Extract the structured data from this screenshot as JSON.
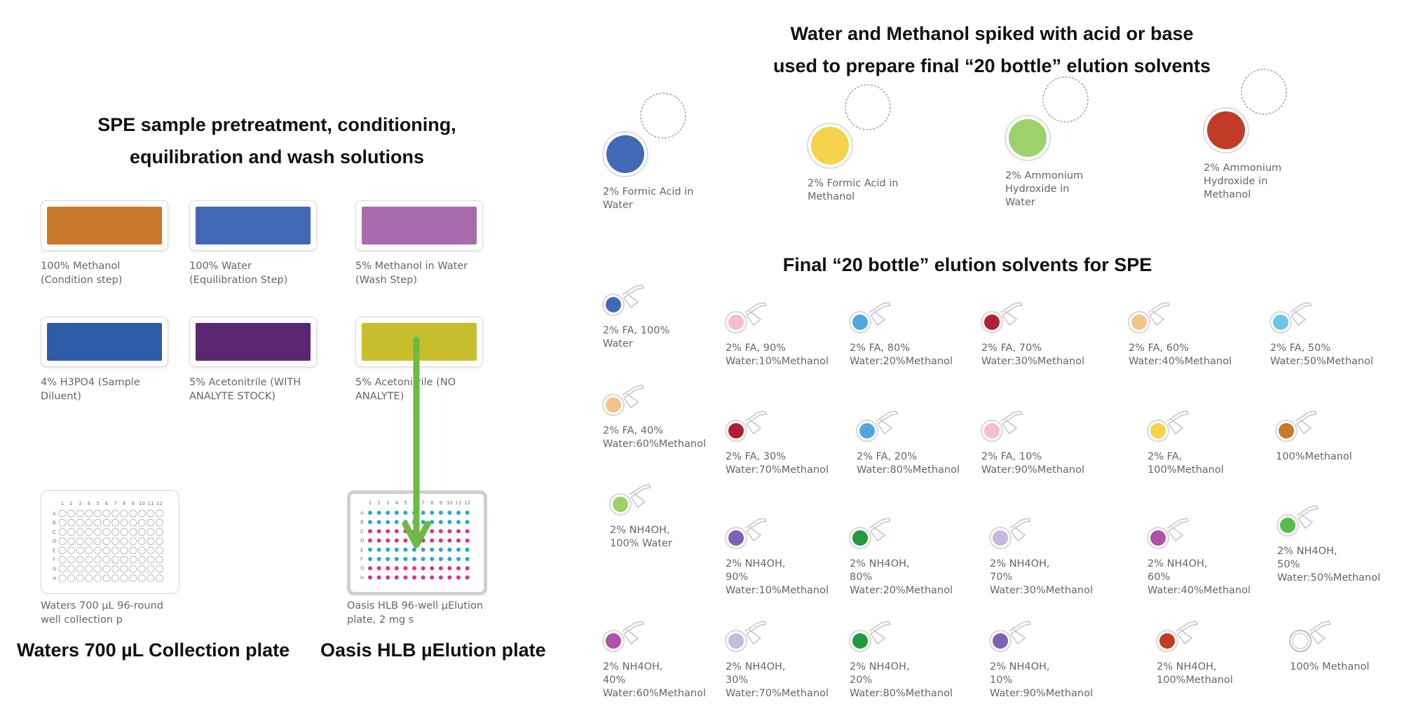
{
  "headings": {
    "left": [
      "SPE sample pretreatment, conditioning,",
      "equilibration and  wash solutions"
    ],
    "right": [
      "Water and Methanol spiked with acid or base",
      "used to prepare final “20 bottle” elution solvents"
    ],
    "final": "Final “20 bottle” elution solvents for SPE",
    "collection_plate": "Waters 700 µL Collection plate",
    "hlb_plate": "Oasis HLB µElution plate"
  },
  "solutions": [
    {
      "color": "#c8792a",
      "label": [
        "100% Methanol",
        "(Condition step)"
      ]
    },
    {
      "color": "#4269b5",
      "label": [
        "100% Water",
        "(Equilibration Step)"
      ]
    },
    {
      "color": "#a86aae",
      "label": [
        "5% Methanol in Water",
        "(Wash Step)"
      ]
    },
    {
      "color": "#2d5ca9",
      "label": [
        "4% H3PO4 (Sample",
        "Diluent)"
      ]
    },
    {
      "color": "#5a2672",
      "label": [
        "5% Acetonitrile (WITH",
        "ANALYTE STOCK)"
      ]
    },
    {
      "color": "#c8bd2c",
      "label": [
        "5% Acetonitrile (NO",
        "ANALYTE)"
      ]
    }
  ],
  "plates": [
    {
      "label": [
        "Waters 700 µL 96-round",
        "well collection p"
      ]
    },
    {
      "label": [
        "Oasis HLB 96-well µElution",
        "plate, 2 mg s"
      ]
    }
  ],
  "plate_grid": {
    "columns": [
      "1",
      "2",
      "3",
      "4",
      "5",
      "6",
      "7",
      "8",
      "9",
      "10",
      "11",
      "12"
    ],
    "rows": [
      "A",
      "B",
      "C",
      "D",
      "E",
      "F",
      "G",
      "H"
    ],
    "hlb_row_colors": [
      "#2aa9c9",
      "#2aa9c9",
      "#d9348d",
      "#d9348d",
      "#2aa9c9",
      "#2aa9c9",
      "#d9348d",
      "#d9348d"
    ]
  },
  "stocks": [
    {
      "color": "#4269b5",
      "label": [
        "2% Formic Acid in",
        "Water"
      ]
    },
    {
      "color": "#f6d34a",
      "label": [
        "2% Formic Acid in",
        "Methanol"
      ]
    },
    {
      "color": "#9dd16c",
      "label": [
        "2% Ammonium",
        "Hydroxide in",
        "Water"
      ]
    },
    {
      "color": "#c23b26",
      "label": [
        "2% Ammonium",
        "Hydroxide in",
        "Methanol"
      ]
    }
  ],
  "vials": [
    {
      "color": "#4269b5",
      "label": [
        "2% FA, 100%",
        "Water"
      ]
    },
    {
      "color": "#f6c0c8",
      "label": [
        "2% FA, 90%",
        "Water:10%Methanol"
      ]
    },
    {
      "color": "#4fa9e0",
      "label": [
        "2% FA, 80%",
        "Water:20%Methanol"
      ]
    },
    {
      "color": "#b11f35",
      "label": [
        "2% FA, 70%",
        "Water:30%Methanol"
      ]
    },
    {
      "color": "#f4c38d",
      "label": [
        "2% FA, 60%",
        "Water:40%Methanol"
      ]
    },
    {
      "color": "#6ec6e5",
      "label": [
        "2% FA, 50%",
        "Water:50%Methanol"
      ]
    },
    {
      "color": "#f4c38d",
      "label": [
        "2% FA, 40%",
        "Water:60%Methanol"
      ]
    },
    {
      "color": "#b11f35",
      "label": [
        "2% FA, 30%",
        "Water:70%Methanol"
      ]
    },
    {
      "color": "#4fa9e0",
      "label": [
        "2% FA, 20%",
        "Water:80%Methanol"
      ]
    },
    {
      "color": "#f6c0c8",
      "label": [
        "2% FA, 10%",
        "Water:90%Methanol"
      ]
    },
    {
      "color": "#f6d34a",
      "label": [
        "2% FA,",
        "100%Methanol"
      ]
    },
    {
      "color": "#c8792a",
      "label": [
        "100%Methanol"
      ]
    },
    {
      "color": "#9dd16c",
      "label": [
        "2% NH4OH,",
        "100% Water"
      ]
    },
    {
      "color": "#7b62b5",
      "label": [
        "2% NH4OH,",
        "90%",
        "Water:10%Methanol"
      ]
    },
    {
      "color": "#249a3c",
      "label": [
        "2% NH4OH,",
        "80%",
        "Water:20%Methanol"
      ]
    },
    {
      "color": "#c9b8df",
      "label": [
        "2% NH4OH,",
        "70%",
        "Water:30%Methanol"
      ]
    },
    {
      "color": "#b152a8",
      "label": [
        "2% NH4OH,",
        "60%",
        "Water:40%Methanol"
      ]
    },
    {
      "color": "#57bc4c",
      "label": [
        "2% NH4OH,",
        "50%",
        "Water:50%Methanol"
      ]
    },
    {
      "color": "#b152a8",
      "label": [
        "2% NH4OH,",
        "40%",
        "Water:60%Methanol"
      ]
    },
    {
      "color": "#c9b8df",
      "label": [
        "2% NH4OH,",
        "30%",
        "Water:70%Methanol"
      ]
    },
    {
      "color": "#249a3c",
      "label": [
        "2% NH4OH,",
        "20%",
        "Water:80%Methanol"
      ]
    },
    {
      "color": "#7b62b5",
      "label": [
        "2% NH4OH,",
        "10%",
        "Water:90%Methanol"
      ]
    },
    {
      "color": "#c23b26",
      "label": [
        "2% NH4OH,",
        "100%Methanol"
      ]
    },
    {
      "color": "#ffffff",
      "label": [
        "100% Methanol"
      ]
    }
  ],
  "arrow_color": "#6dbb42"
}
